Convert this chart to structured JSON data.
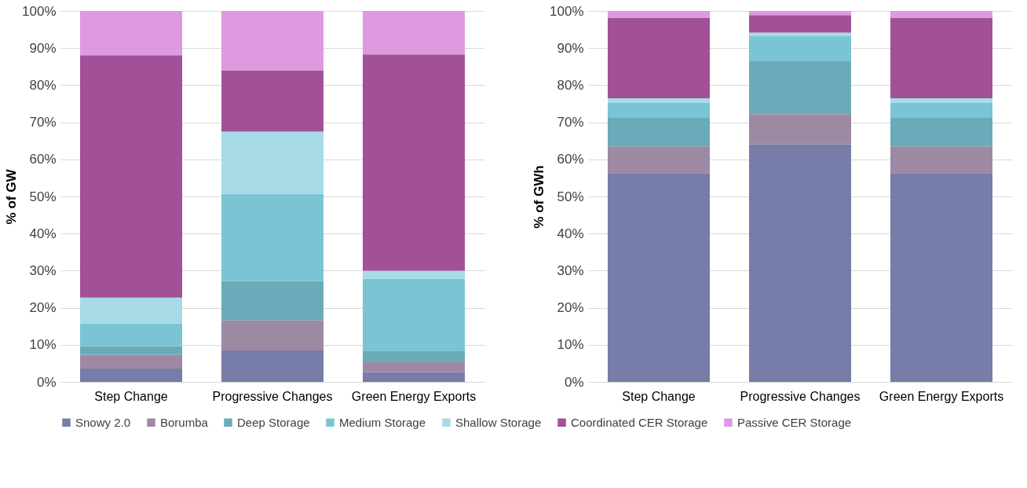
{
  "chart_data": [
    {
      "type": "bar",
      "stacked": true,
      "ylabel": "% of GW",
      "categories": [
        "Step Change",
        "Progressive Changes",
        "Green Energy Exports"
      ],
      "ylim": [
        0,
        100
      ],
      "yticks": [
        {
          "value": 0,
          "label": "0%"
        },
        {
          "value": 10,
          "label": "10%"
        },
        {
          "value": 20,
          "label": "20%"
        },
        {
          "value": 30,
          "label": "30%"
        },
        {
          "value": 40,
          "label": "40%"
        },
        {
          "value": 50,
          "label": "50%"
        },
        {
          "value": 60,
          "label": "60%"
        },
        {
          "value": 70,
          "label": "70%"
        },
        {
          "value": 80,
          "label": "80%"
        },
        {
          "value": 90,
          "label": "90%"
        },
        {
          "value": 100,
          "label": "100%"
        }
      ],
      "grid": "y",
      "legend": "bottom",
      "series": [
        {
          "name": "Snowy 2.0",
          "color": "#787ca8",
          "values": [
            3.6,
            8.5,
            2.6
          ]
        },
        {
          "name": "Borumba",
          "color": "#9e89a3",
          "values": [
            3.7,
            8.1,
            2.7
          ]
        },
        {
          "name": "Deep Storage",
          "color": "#6aabba",
          "values": [
            2.3,
            10.6,
            3.1
          ]
        },
        {
          "name": "Medium Storage",
          "color": "#7ac4d5",
          "values": [
            6.2,
            23.5,
            19.4
          ]
        },
        {
          "name": "Shallow Storage",
          "color": "#a6dbe7",
          "values": [
            6.9,
            16.8,
            2.2
          ]
        },
        {
          "name": "Coordinated CER Storage",
          "color": "#a25198",
          "values": [
            65.4,
            16.5,
            58.3
          ]
        },
        {
          "name": "Passive CER Storage",
          "color": "#dd9ae0",
          "values": [
            11.9,
            16.0,
            11.7
          ]
        }
      ]
    },
    {
      "type": "bar",
      "stacked": true,
      "ylabel": "% of GWh",
      "categories": [
        "Step Change",
        "Progressive Changes",
        "Green Energy Exports"
      ],
      "ylim": [
        0,
        100
      ],
      "yticks": [
        {
          "value": 0,
          "label": "0%"
        },
        {
          "value": 10,
          "label": "10%"
        },
        {
          "value": 20,
          "label": "20%"
        },
        {
          "value": 30,
          "label": "30%"
        },
        {
          "value": 40,
          "label": "40%"
        },
        {
          "value": 50,
          "label": "50%"
        },
        {
          "value": 60,
          "label": "60%"
        },
        {
          "value": 70,
          "label": "70%"
        },
        {
          "value": 80,
          "label": "80%"
        },
        {
          "value": 90,
          "label": "90%"
        },
        {
          "value": 100,
          "label": "100%"
        }
      ],
      "grid": "y",
      "legend": "bottom",
      "series": [
        {
          "name": "Snowy 2.0",
          "color": "#787ca8",
          "values": [
            56.3,
            64.1,
            56.3
          ]
        },
        {
          "name": "Borumba",
          "color": "#9e89a3",
          "values": [
            7.2,
            8.1,
            7.2
          ]
        },
        {
          "name": "Deep Storage",
          "color": "#6aabba",
          "values": [
            7.7,
            14.4,
            7.7
          ]
        },
        {
          "name": "Medium Storage",
          "color": "#7ac4d5",
          "values": [
            4.1,
            6.6,
            4.1
          ]
        },
        {
          "name": "Shallow Storage",
          "color": "#a6dbe7",
          "values": [
            1.2,
            1.0,
            1.2
          ]
        },
        {
          "name": "Coordinated CER Storage",
          "color": "#a25198",
          "values": [
            21.6,
            4.7,
            21.6
          ]
        },
        {
          "name": "Passive CER Storage",
          "color": "#dd9ae0",
          "values": [
            1.9,
            1.1,
            1.9
          ]
        }
      ]
    }
  ]
}
